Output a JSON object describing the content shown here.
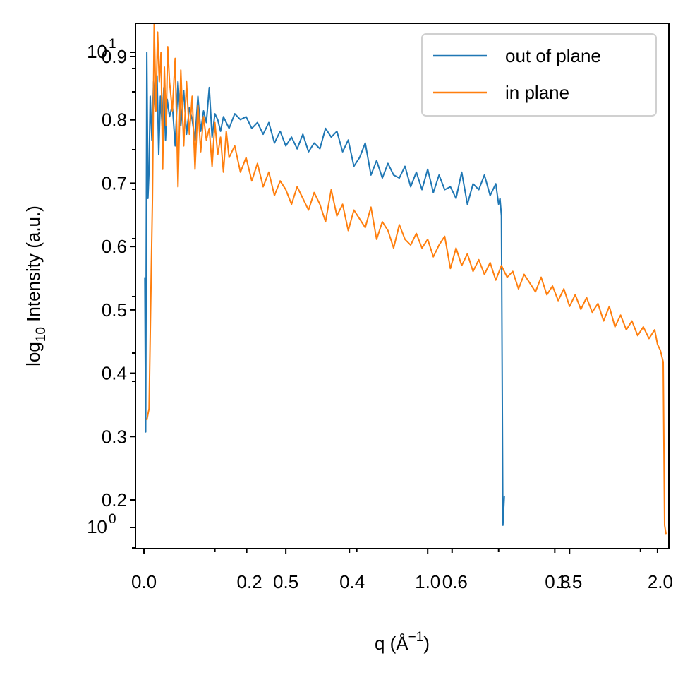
{
  "chart_data": {
    "type": "line",
    "xlabel": {
      "main": "q (Å",
      "sup": "−1",
      "close": ")"
    },
    "ylabel": {
      "main": "log",
      "sub": "10",
      "rest": " Intensity (a.u.)"
    },
    "x_scale": "linear",
    "y_scale": "log",
    "xlim": [
      -0.03,
      1.85
    ],
    "ylim": [
      0.94,
      1.12
    ],
    "overlapping_tick_sets": {
      "x_bottom_main": [
        {
          "value": 0.0,
          "label": "0.0"
        },
        {
          "value": 0.5,
          "label": "0.5"
        },
        {
          "value": 1.0,
          "label": "1.0"
        },
        {
          "value": 1.5,
          "label": "1.5"
        }
      ],
      "x_bottom_ghost": [
        {
          "value": 0.0,
          "label": "0.0"
        },
        {
          "value": 0.2,
          "label": "0.2"
        },
        {
          "value": 0.4,
          "label": "0.4"
        },
        {
          "value": 0.6,
          "label": "0.6"
        },
        {
          "value": 0.8,
          "label": "0.8"
        },
        {
          "value": 1.0,
          "label": "2.0"
        }
      ],
      "y_left_main": [
        {
          "value": 0.9,
          "label": "0.9"
        },
        {
          "value": 0.8,
          "label": "0.8"
        },
        {
          "value": 0.7,
          "label": "0.7"
        },
        {
          "value": 0.6,
          "label": "0.6"
        },
        {
          "value": 0.5,
          "label": "0.5"
        },
        {
          "value": 0.4,
          "label": "0.4"
        },
        {
          "value": 0.3,
          "label": "0.3"
        },
        {
          "value": 0.2,
          "label": "0.2"
        }
      ],
      "y_left_log": [
        {
          "value": 1,
          "label": "10",
          "sup": "1"
        },
        {
          "value": 0,
          "label": "10",
          "sup": "0"
        }
      ]
    },
    "series": [
      {
        "name": "out of plane",
        "color": "#1f77b4",
        "x": [
          0.003,
          0.006,
          0.01,
          0.014,
          0.018,
          0.022,
          0.028,
          0.034,
          0.04,
          0.046,
          0.052,
          0.058,
          0.064,
          0.07,
          0.076,
          0.082,
          0.09,
          0.1,
          0.11,
          0.12,
          0.13,
          0.14,
          0.15,
          0.16,
          0.17,
          0.18,
          0.19,
          0.2,
          0.21,
          0.22,
          0.23,
          0.24,
          0.25,
          0.26,
          0.27,
          0.28,
          0.29,
          0.3,
          0.32,
          0.34,
          0.36,
          0.38,
          0.4,
          0.42,
          0.44,
          0.46,
          0.48,
          0.5,
          0.52,
          0.54,
          0.56,
          0.58,
          0.6,
          0.62,
          0.64,
          0.66,
          0.68,
          0.7,
          0.72,
          0.74,
          0.76,
          0.78,
          0.8,
          0.82,
          0.84,
          0.86,
          0.88,
          0.9,
          0.92,
          0.94,
          0.96,
          0.98,
          1.0,
          1.02,
          1.04,
          1.06,
          1.08,
          1.1,
          1.12,
          1.14,
          1.16,
          1.18,
          1.2,
          1.22,
          1.24,
          1.25,
          1.255,
          1.26,
          1.265,
          1.27
        ],
        "y": [
          1.033,
          0.98,
          1.11,
          1.06,
          1.07,
          1.095,
          1.08,
          1.1,
          1.09,
          1.102,
          1.075,
          1.095,
          1.085,
          1.098,
          1.08,
          1.094,
          1.088,
          1.092,
          1.078,
          1.1,
          1.085,
          1.097,
          1.082,
          1.091,
          1.087,
          1.08,
          1.095,
          1.083,
          1.09,
          1.086,
          1.098,
          1.081,
          1.089,
          1.087,
          1.083,
          1.088,
          1.086,
          1.084,
          1.089,
          1.087,
          1.088,
          1.084,
          1.086,
          1.082,
          1.086,
          1.079,
          1.083,
          1.078,
          1.081,
          1.077,
          1.082,
          1.076,
          1.079,
          1.077,
          1.084,
          1.081,
          1.083,
          1.076,
          1.08,
          1.071,
          1.074,
          1.079,
          1.068,
          1.073,
          1.067,
          1.072,
          1.068,
          1.067,
          1.071,
          1.064,
          1.069,
          1.063,
          1.07,
          1.062,
          1.068,
          1.063,
          1.064,
          1.06,
          1.069,
          1.058,
          1.065,
          1.063,
          1.068,
          1.061,
          1.065,
          1.058,
          1.06,
          1.054,
          0.948,
          0.958
        ]
      },
      {
        "name": "in plane",
        "color": "#ff7f0e",
        "x": [
          0.01,
          0.018,
          0.024,
          0.03,
          0.036,
          0.042,
          0.048,
          0.054,
          0.06,
          0.066,
          0.072,
          0.078,
          0.084,
          0.09,
          0.1,
          0.11,
          0.12,
          0.13,
          0.14,
          0.15,
          0.16,
          0.17,
          0.18,
          0.19,
          0.2,
          0.21,
          0.22,
          0.23,
          0.24,
          0.25,
          0.26,
          0.27,
          0.28,
          0.29,
          0.3,
          0.32,
          0.34,
          0.36,
          0.38,
          0.4,
          0.42,
          0.44,
          0.46,
          0.48,
          0.5,
          0.52,
          0.54,
          0.56,
          0.58,
          0.6,
          0.62,
          0.64,
          0.66,
          0.68,
          0.7,
          0.72,
          0.74,
          0.76,
          0.78,
          0.8,
          0.82,
          0.84,
          0.86,
          0.88,
          0.9,
          0.92,
          0.94,
          0.96,
          0.98,
          1.0,
          1.02,
          1.04,
          1.06,
          1.08,
          1.1,
          1.12,
          1.14,
          1.16,
          1.18,
          1.2,
          1.22,
          1.24,
          1.26,
          1.28,
          1.3,
          1.32,
          1.34,
          1.36,
          1.38,
          1.4,
          1.42,
          1.44,
          1.46,
          1.48,
          1.5,
          1.52,
          1.54,
          1.56,
          1.58,
          1.6,
          1.62,
          1.64,
          1.66,
          1.68,
          1.7,
          1.72,
          1.74,
          1.76,
          1.78,
          1.8,
          1.81,
          1.82,
          1.825,
          1.83,
          1.835,
          1.84
        ],
        "y": [
          0.984,
          0.988,
          1.025,
          1.06,
          1.12,
          1.09,
          1.117,
          1.1,
          1.11,
          1.07,
          1.105,
          1.085,
          1.112,
          1.1,
          1.09,
          1.108,
          1.064,
          1.104,
          1.078,
          1.1,
          1.082,
          1.095,
          1.07,
          1.092,
          1.076,
          1.088,
          1.08,
          1.084,
          1.071,
          1.086,
          1.075,
          1.081,
          1.069,
          1.083,
          1.074,
          1.078,
          1.069,
          1.074,
          1.066,
          1.072,
          1.064,
          1.069,
          1.061,
          1.066,
          1.063,
          1.058,
          1.064,
          1.06,
          1.056,
          1.062,
          1.058,
          1.052,
          1.063,
          1.054,
          1.058,
          1.049,
          1.056,
          1.053,
          1.05,
          1.057,
          1.046,
          1.052,
          1.049,
          1.043,
          1.051,
          1.046,
          1.044,
          1.048,
          1.043,
          1.046,
          1.04,
          1.044,
          1.047,
          1.036,
          1.043,
          1.037,
          1.041,
          1.035,
          1.039,
          1.034,
          1.038,
          1.032,
          1.037,
          1.033,
          1.035,
          1.029,
          1.034,
          1.031,
          1.028,
          1.033,
          1.027,
          1.03,
          1.025,
          1.029,
          1.023,
          1.027,
          1.022,
          1.026,
          1.021,
          1.024,
          1.018,
          1.023,
          1.016,
          1.02,
          1.015,
          1.018,
          1.013,
          1.016,
          1.012,
          1.015,
          1.01,
          1.008,
          1.006,
          1.004,
          0.948,
          0.945
        ]
      }
    ],
    "legend": {
      "position": "top-right",
      "entries": [
        "out of plane",
        "in plane"
      ]
    }
  }
}
